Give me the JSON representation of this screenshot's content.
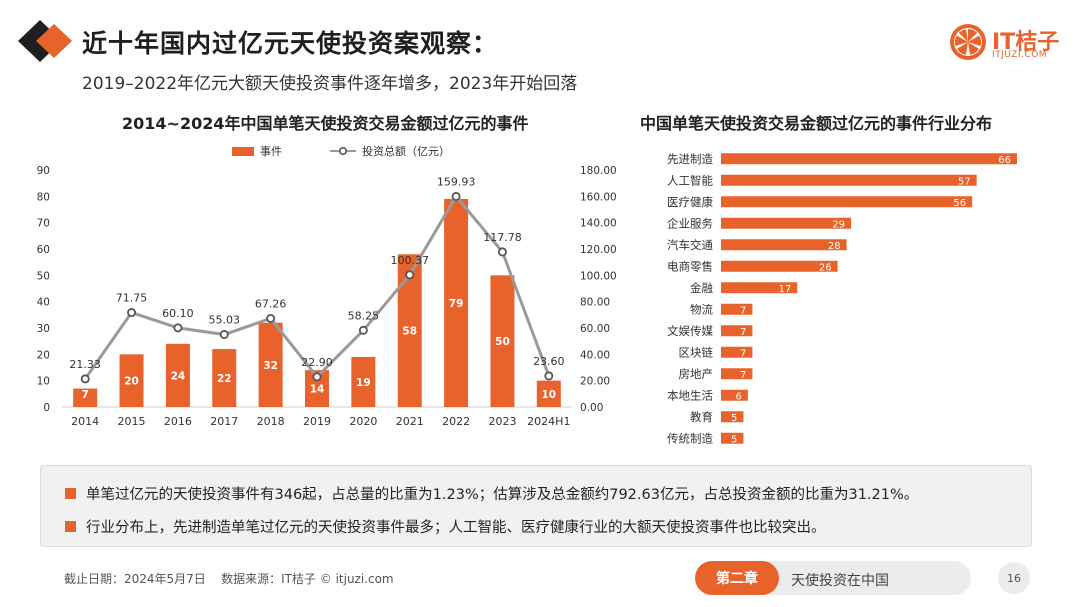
{
  "header": {
    "title": "近十年国内过亿元天使投资案观察：",
    "subtitle": "2019–2022年亿元大额天使投资事件逐年增多，2023年开始回落"
  },
  "brand": {
    "name": "IT桔子",
    "url": "ITJUZI.COM"
  },
  "colors": {
    "accent": "#e8622c",
    "line": "#9a9a9a"
  },
  "chart_data": [
    {
      "type": "bar",
      "title": "2014~2024年中国单笔天使投资交易金额过亿元的事件",
      "categories": [
        "2014",
        "2015",
        "2016",
        "2017",
        "2018",
        "2019",
        "2020",
        "2021",
        "2022",
        "2023",
        "2024H1"
      ],
      "series": [
        {
          "name": "事件",
          "type": "bar",
          "axis": "left",
          "values": [
            7,
            20,
            24,
            22,
            32,
            14,
            19,
            58,
            79,
            50,
            10
          ]
        },
        {
          "name": "投资总额（亿元）",
          "type": "line",
          "axis": "right",
          "values": [
            21.33,
            71.75,
            60.1,
            55.03,
            67.26,
            22.9,
            58.25,
            100.37,
            159.93,
            117.78,
            23.6
          ],
          "labels": [
            "21.33",
            "71.75",
            "60.10",
            "55.03",
            "67.26",
            "22.90",
            "58.25",
            "100.37",
            "159.93",
            "117.78",
            "23.60"
          ]
        }
      ],
      "left_ticks": [
        "0",
        "10",
        "20",
        "30",
        "40",
        "50",
        "60",
        "70",
        "80",
        "90"
      ],
      "right_ticks": [
        "0.00",
        "20.00",
        "40.00",
        "60.00",
        "80.00",
        "100.00",
        "120.00",
        "140.00",
        "160.00",
        "180.00"
      ],
      "ylim_left": [
        0,
        90
      ],
      "ylim_right": [
        0,
        180
      ],
      "legend": "top"
    },
    {
      "type": "bar",
      "orientation": "horizontal",
      "title": "中国单笔天使投资交易金额过亿元的事件行业分布",
      "categories": [
        "先进制造",
        "人工智能",
        "医疗健康",
        "企业服务",
        "汽车交通",
        "电商零售",
        "金融",
        "物流",
        "文娱传媒",
        "区块链",
        "房地产",
        "本地生活",
        "教育",
        "传统制造"
      ],
      "values": [
        66,
        57,
        56,
        29,
        28,
        26,
        17,
        7,
        7,
        7,
        7,
        6,
        5,
        5
      ]
    }
  ],
  "summary": {
    "items": [
      "单笔过亿元的天使投资事件有346起，占总量的比重为1.23%；估算涉及总金额约792.63亿元，占总投资金额的比重为31.21%。",
      "行业分布上，先进制造单笔过亿元的天使投资事件最多；人工智能、医疗健康行业的大额天使投资事件也比较突出。"
    ]
  },
  "footer": {
    "note": "截止日期：2024年5月7日    数据来源：IT桔子 © itjuzi.com",
    "chapter": "第二章",
    "chapter_name": "天使投资在中国",
    "page": "16"
  }
}
